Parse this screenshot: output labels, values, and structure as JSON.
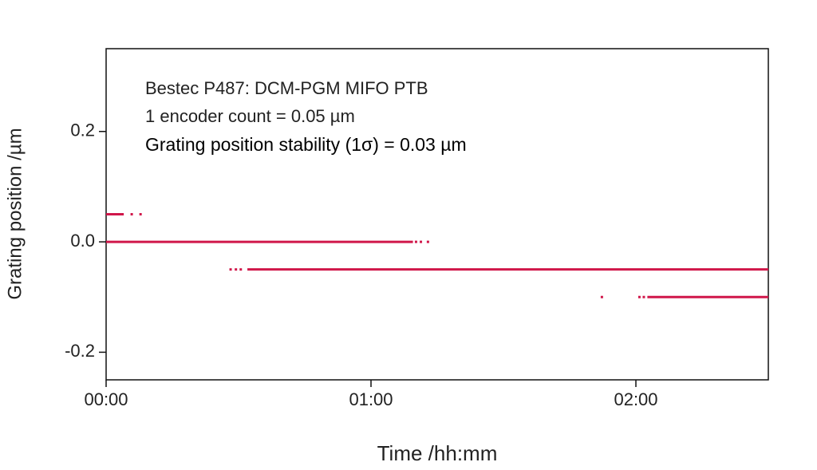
{
  "chart_data": {
    "type": "line",
    "annotations": [
      "Bestec P487: DCM-PGM MIFO PTB",
      "1 encoder count = 0.05 µm",
      "Grating position stability (1σ) = 0.03 µm"
    ],
    "xlabel": "Time /hh:mm",
    "ylabel": "Grating position /µm",
    "xlim": [
      0,
      150
    ],
    "xticks": [
      {
        "value": 0,
        "label": "00:00"
      },
      {
        "value": 60,
        "label": "01:00"
      },
      {
        "value": 120,
        "label": "02:00"
      }
    ],
    "ylim": [
      -0.25,
      0.35
    ],
    "yticks": [
      -0.2,
      {
        "value": 0,
        "label": "0.0"
      },
      0.2
    ],
    "series": [
      {
        "color": "#d0174a",
        "x": [
          0,
          4
        ],
        "values": [
          0.05,
          0.05
        ]
      },
      {
        "color": "#d0174a",
        "x": [
          5.8
        ],
        "values": [
          0.05
        ]
      },
      {
        "color": "#d0174a",
        "x": [
          7.8
        ],
        "values": [
          0.05
        ]
      },
      {
        "color": "#d0174a",
        "x": [
          0,
          69.5
        ],
        "values": [
          0,
          0
        ]
      },
      {
        "color": "#d0174a",
        "x": [
          70.2
        ],
        "values": [
          0
        ]
      },
      {
        "color": "#d0174a",
        "x": [
          71.3
        ],
        "values": [
          0
        ]
      },
      {
        "color": "#d0174a",
        "x": [
          72.9
        ],
        "values": [
          0
        ]
      },
      {
        "color": "#d0174a",
        "x": [
          28.2
        ],
        "values": [
          -0.05
        ]
      },
      {
        "color": "#d0174a",
        "x": [
          29.4
        ],
        "values": [
          -0.05
        ]
      },
      {
        "color": "#d0174a",
        "x": [
          30.5
        ],
        "values": [
          -0.05
        ]
      },
      {
        "color": "#d0174a",
        "x": [
          32,
          150
        ],
        "values": [
          -0.05,
          -0.05
        ]
      },
      {
        "color": "#d0174a",
        "x": [
          112.3
        ],
        "values": [
          -0.1
        ]
      },
      {
        "color": "#d0174a",
        "x": [
          120.8
        ],
        "values": [
          -0.1
        ]
      },
      {
        "color": "#d0174a",
        "x": [
          121.8
        ],
        "values": [
          -0.1
        ]
      },
      {
        "color": "#d0174a",
        "x": [
          122.6,
          150
        ],
        "values": [
          -0.1,
          -0.1
        ]
      }
    ]
  }
}
